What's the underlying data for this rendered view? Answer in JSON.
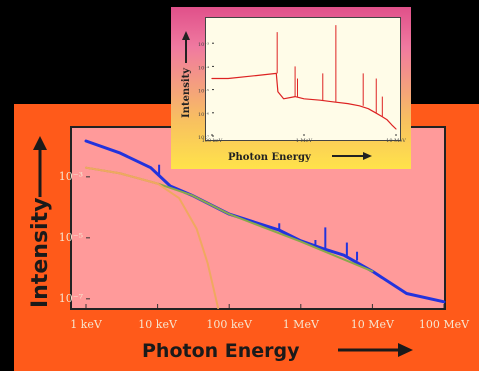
{
  "chart_data": [
    {
      "id": "main",
      "type": "line",
      "xscale": "log",
      "yscale": "log",
      "xlabel": "Photon Energy",
      "ylabel": "Intensity",
      "xlim": [
        0.001,
        100
      ],
      "ylim": [
        5e-08,
        0.04
      ],
      "x_tick_values": [
        0.001,
        0.01,
        0.1,
        1,
        10,
        100
      ],
      "x_tick_labels": [
        "1 keV",
        "10 keV",
        "100 keV",
        "1 MeV",
        "10 MeV",
        "100 MeV"
      ],
      "y_tick_values": [
        0.001,
        1e-05,
        1e-07
      ],
      "y_tick_labels": [
        "10⁻³",
        "10⁻⁵",
        "10⁻⁷"
      ],
      "colors": {
        "total": "#2233dd",
        "continuum": "#8aa84a",
        "thermal": "#f0a860"
      },
      "series": [
        {
          "key": "total",
          "x": [
            0.001,
            0.003,
            0.008,
            0.015,
            0.03,
            0.1,
            0.5,
            1,
            2,
            4,
            10,
            30,
            100
          ],
          "y": [
            0.015,
            0.006,
            0.002,
            0.0005,
            0.00025,
            6e-05,
            1.8e-05,
            8e-06,
            4.5e-06,
            2.7e-06,
            8e-07,
            1.5e-07,
            8e-08
          ]
        },
        {
          "key": "continuum",
          "x": [
            0.001,
            0.003,
            0.01,
            0.03,
            0.1,
            1,
            10
          ],
          "y": [
            0.002,
            0.0013,
            0.0006,
            0.00025,
            6e-05,
            7.5e-06,
            8e-07
          ]
        },
        {
          "key": "thermal",
          "x": [
            0.001,
            0.003,
            0.01,
            0.02,
            0.035,
            0.05,
            0.07
          ],
          "y": [
            0.002,
            0.0013,
            0.0006,
            0.0002,
            2e-05,
            1.5e-06,
            5e-08
          ]
        }
      ],
      "lines": [
        {
          "x": 0.0105,
          "y_base": 0.0011,
          "y_peak": 0.0025
        },
        {
          "x": 0.5,
          "y_base": 1.8e-05,
          "y_peak": 3e-05
        },
        {
          "x": 2.2,
          "y_base": 4.5e-06,
          "y_peak": 2.2e-05
        },
        {
          "x": 4.4,
          "y_base": 2.6e-06,
          "y_peak": 7e-06
        },
        {
          "x": 1.6,
          "y_base": 5.5e-06,
          "y_peak": 8.5e-06
        },
        {
          "x": 6.1,
          "y_base": 1.8e-06,
          "y_peak": 3.5e-06
        }
      ]
    },
    {
      "id": "inset",
      "type": "line",
      "xscale": "log",
      "yscale": "log",
      "xlabel": "Photon Energy",
      "ylabel": "Intensity",
      "xlim": [
        0.1,
        10
      ],
      "ylim": [
        1e-07,
        0.01
      ],
      "x_tick_values": [
        0.1,
        1,
        10
      ],
      "x_tick_labels": [
        "100 keV",
        "1 MeV",
        "10 MeV"
      ],
      "y_tick_values": [
        0.001,
        0.0001,
        1e-05,
        1e-06,
        1e-07
      ],
      "y_tick_labels": [
        "10⁻³",
        "10⁻⁴",
        "10⁻⁵",
        "10⁻⁶",
        "10⁻⁷"
      ],
      "colors": {
        "spectrum": "#dd2222"
      },
      "series": [
        {
          "key": "spectrum",
          "x": [
            0.1,
            0.15,
            0.3,
            0.5,
            0.52,
            0.6,
            0.8,
            1,
            1.5,
            2,
            3,
            4,
            5,
            6,
            7,
            8,
            9,
            10
          ],
          "y": [
            3e-05,
            3e-05,
            4e-05,
            5e-05,
            8e-06,
            4e-06,
            5e-06,
            4e-06,
            3.5e-06,
            3e-06,
            2.5e-06,
            2e-06,
            1.5e-06,
            1e-06,
            7e-07,
            5e-07,
            3e-07,
            2e-07
          ]
        }
      ],
      "lines": [
        {
          "x": 0.511,
          "y_base": 5e-05,
          "y_peak": 0.003
        },
        {
          "x": 0.8,
          "y_base": 5e-06,
          "y_peak": 0.0001
        },
        {
          "x": 0.85,
          "y_base": 5e-06,
          "y_peak": 3e-05
        },
        {
          "x": 1.6,
          "y_base": 3.5e-06,
          "y_peak": 5e-05
        },
        {
          "x": 2.22,
          "y_base": 3e-06,
          "y_peak": 0.006
        },
        {
          "x": 4.4,
          "y_base": 2e-06,
          "y_peak": 5e-05
        },
        {
          "x": 6.1,
          "y_base": 1e-06,
          "y_peak": 3e-05
        },
        {
          "x": 7.1,
          "y_base": 7e-07,
          "y_peak": 5e-06
        }
      ]
    }
  ]
}
